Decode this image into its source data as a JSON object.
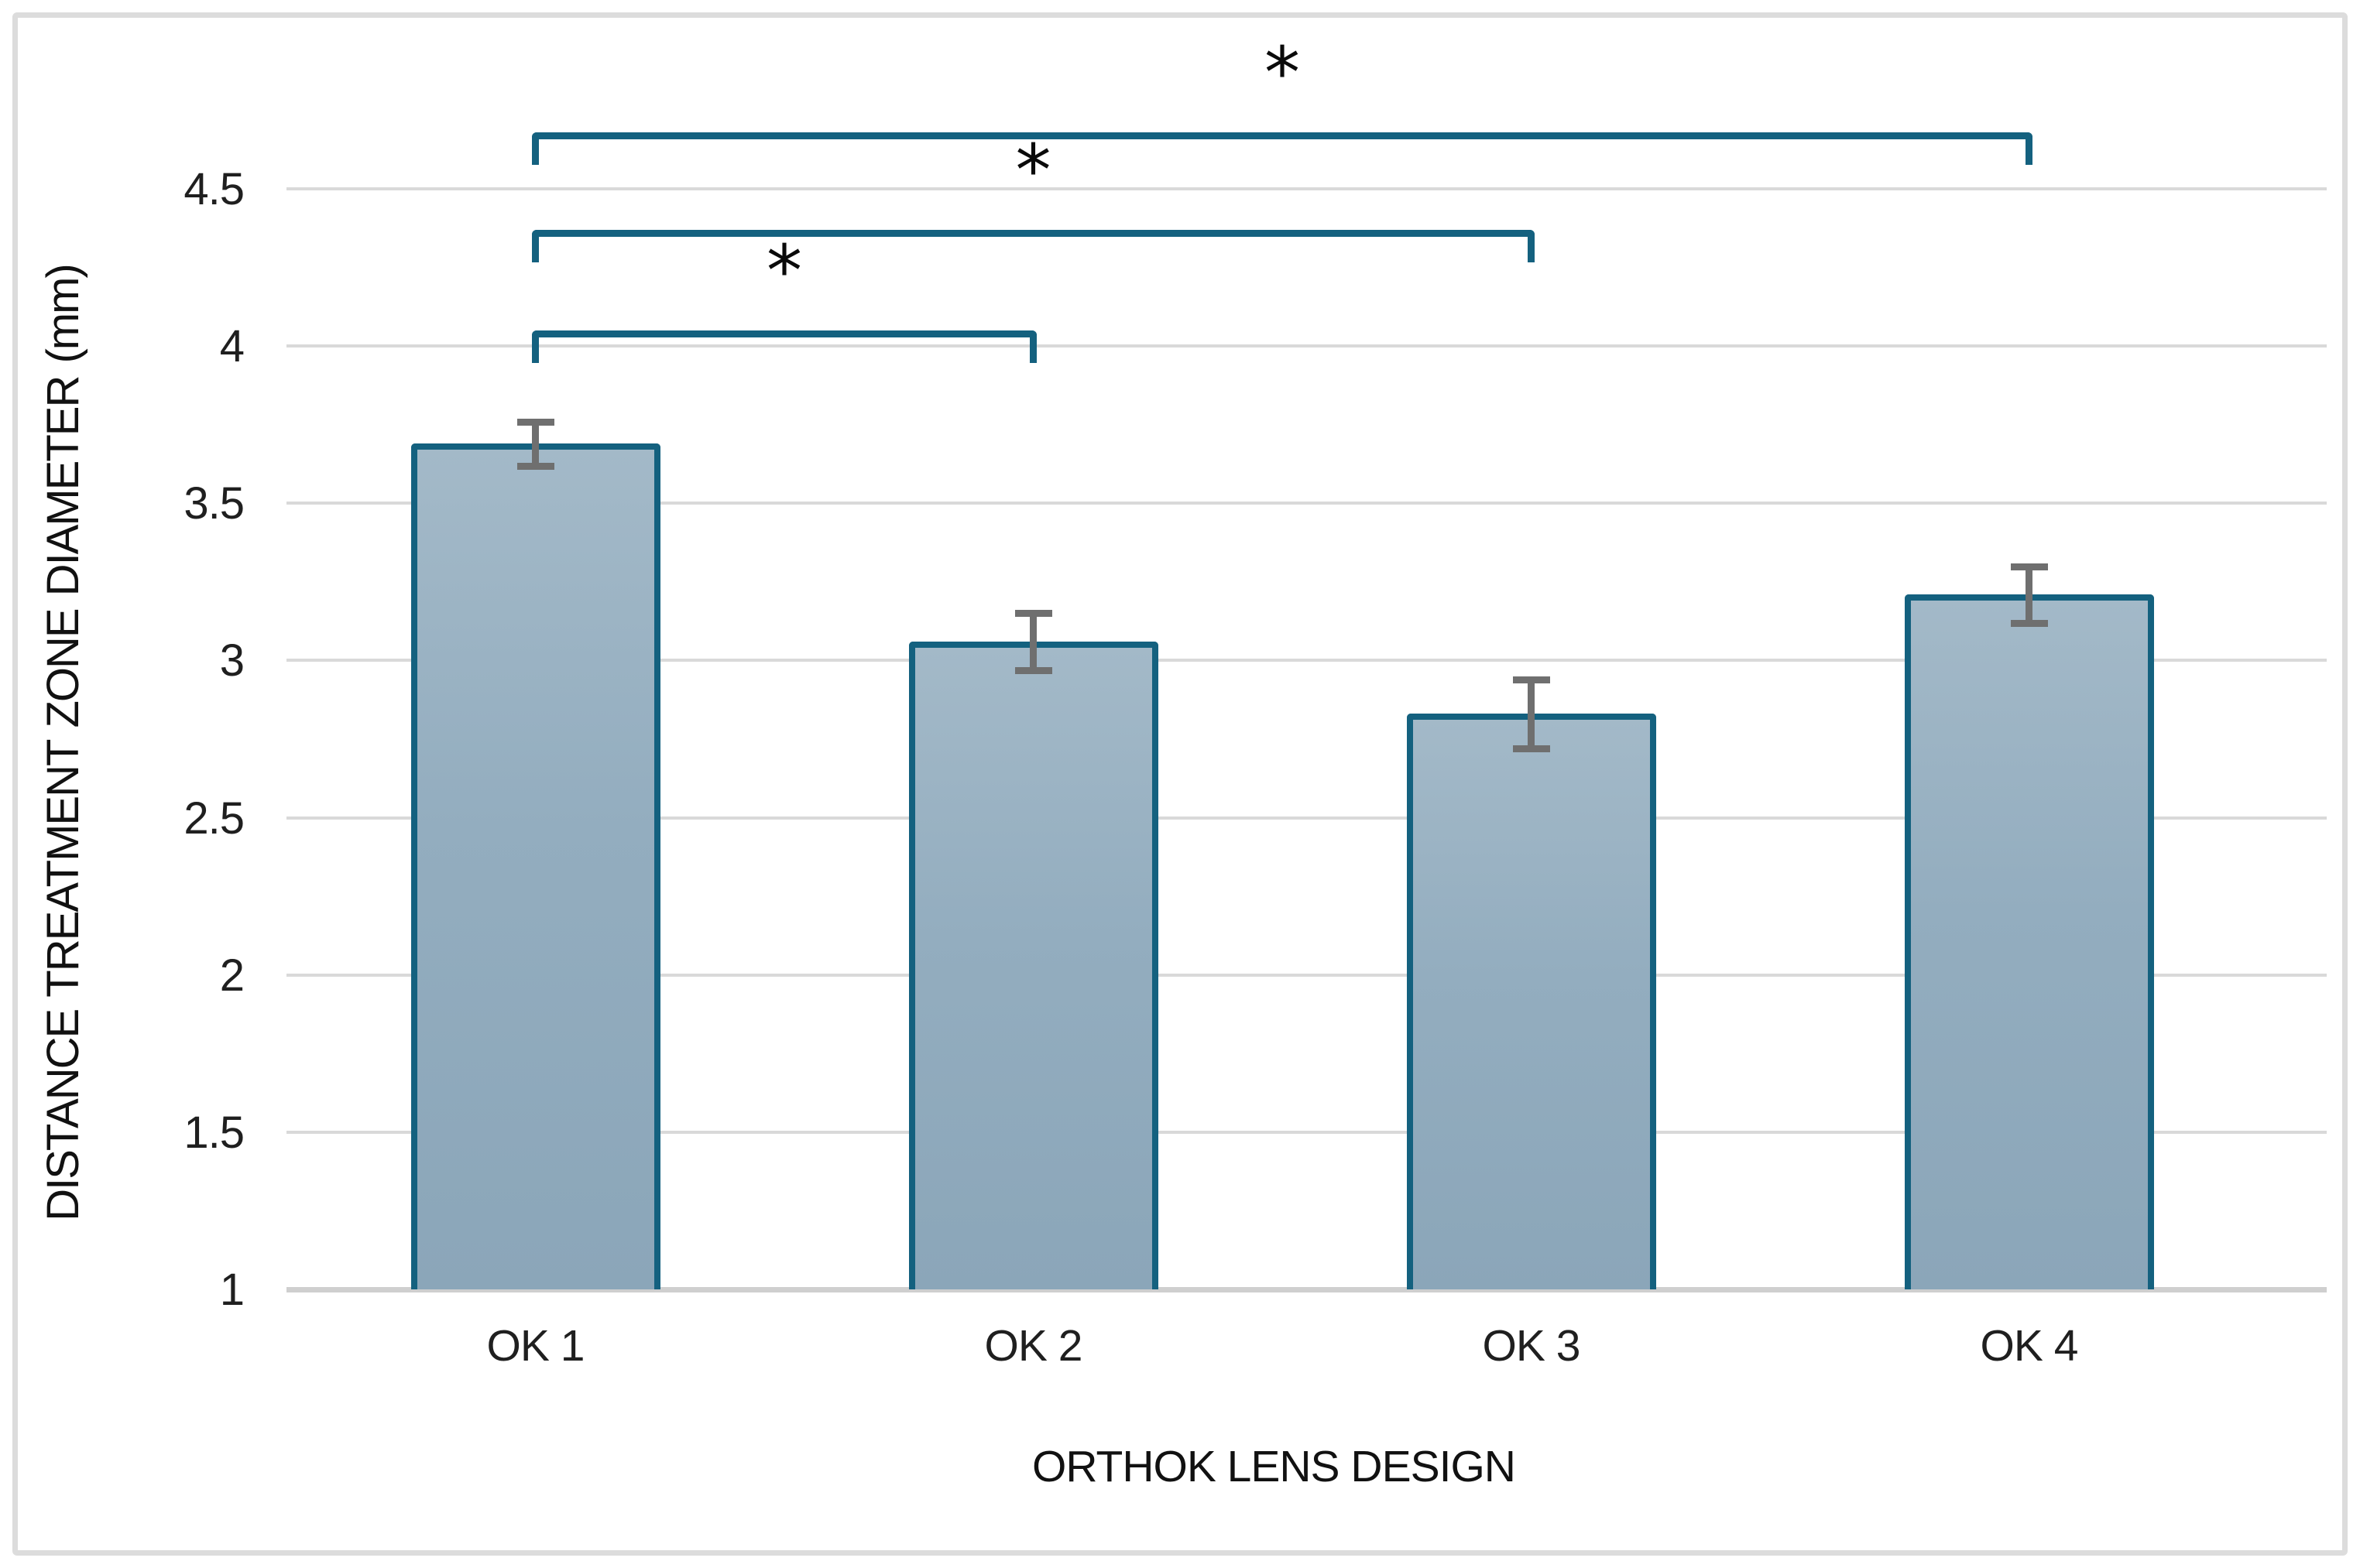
{
  "figure": {
    "background": "#ffffff",
    "border_color": "#dcdcdc"
  },
  "chart_data": {
    "type": "bar",
    "title": "",
    "categories": [
      "OK 1",
      "OK 2",
      "OK 3",
      "OK 4"
    ],
    "values": [
      3.69,
      3.06,
      2.83,
      3.21
    ],
    "error_bars": [
      0.07,
      0.09,
      0.11,
      0.09
    ],
    "xlabel": "ORTHOK LENS DESIGN",
    "ylabel": "DISTANCE TREATMENT ZONE DIAMETER (mm)",
    "ylim": [
      1,
      4.5
    ],
    "ytick_step": 0.5,
    "ytick_labels": [
      "1",
      "1.5",
      "2",
      "2.5",
      "3",
      "3.5",
      "4",
      "4.5"
    ],
    "grid": true,
    "legend": false,
    "significance_brackets": [
      {
        "from": "OK 1",
        "to": "OK 2",
        "from_index": 0,
        "to_index": 1,
        "y": 4.05,
        "label": "*"
      },
      {
        "from": "OK 1",
        "to": "OK 3",
        "from_index": 0,
        "to_index": 2,
        "y": 4.37,
        "label": "*"
      },
      {
        "from": "OK 1",
        "to": "OK 4",
        "from_index": 0,
        "to_index": 3,
        "y": 4.68,
        "label": "*"
      }
    ],
    "colors": {
      "bar_fill": "#93adbf",
      "bar_fill_top": "#a3b9c8",
      "bar_border": "#14617f",
      "bracket": "#14617f",
      "error_bar": "#6f6f6f",
      "gridline": "#d9d9d9",
      "axis_line": "#cfcfcf",
      "text": "#1f1f1f",
      "asterisk": "#0a0a0a"
    }
  }
}
